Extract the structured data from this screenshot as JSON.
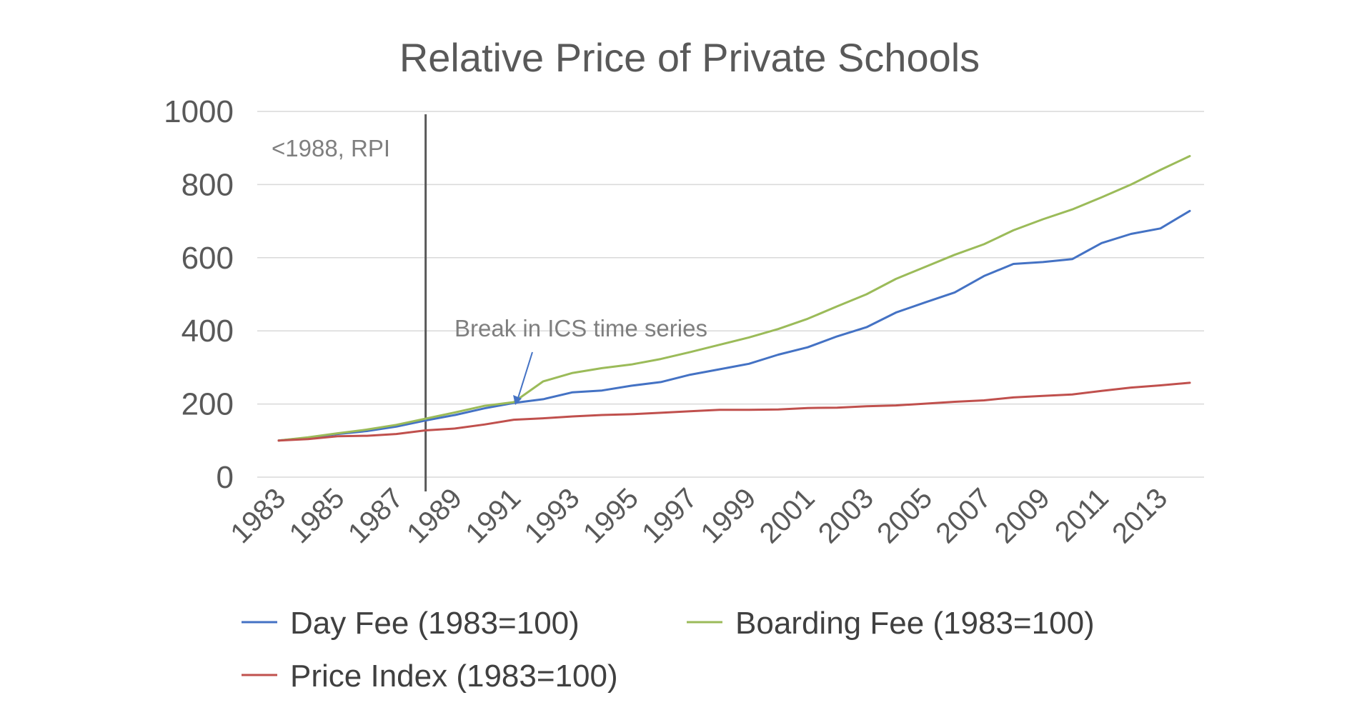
{
  "chart_data": {
    "type": "line",
    "title": "Relative Price of Private Schools",
    "xlabel": "",
    "ylabel": "",
    "ylim": [
      0,
      1000
    ],
    "yticks": [
      "0",
      "200",
      "400",
      "600",
      "800",
      "1000"
    ],
    "grid": true,
    "legend_position": "bottom",
    "x": [
      1983,
      1984,
      1985,
      1986,
      1987,
      1988,
      1989,
      1990,
      1991,
      1992,
      1993,
      1994,
      1995,
      1996,
      1997,
      1998,
      1999,
      2000,
      2001,
      2002,
      2003,
      2004,
      2005,
      2006,
      2007,
      2008,
      2009,
      2010,
      2011,
      2012,
      2013,
      2014
    ],
    "xtick_labels": [
      "1983",
      "1985",
      "1987",
      "1989",
      "1991",
      "1993",
      "1995",
      "1997",
      "1999",
      "2001",
      "2003",
      "2005",
      "2007",
      "2009",
      "2011",
      "2013"
    ],
    "series": [
      {
        "name": "Day Fee (1983=100)",
        "color": "#4472c4",
        "values": [
          100,
          108,
          118,
          126,
          138,
          155,
          170,
          188,
          203,
          213,
          232,
          237,
          250,
          260,
          280,
          295,
          310,
          335,
          355,
          385,
          410,
          450,
          478,
          505,
          550,
          583,
          588,
          596,
          640,
          665,
          680,
          728
        ]
      },
      {
        "name": "Boarding Fee (1983=100)",
        "color": "#9bbb59",
        "values": [
          100,
          109,
          120,
          130,
          143,
          160,
          177,
          195,
          205,
          262,
          285,
          298,
          308,
          323,
          342,
          362,
          382,
          405,
          433,
          467,
          500,
          542,
          575,
          608,
          637,
          675,
          705,
          732,
          765,
          800,
          840,
          878
        ]
      },
      {
        "name": "Price Index (1983=100)",
        "color": "#c0504d",
        "values": [
          100,
          104,
          112,
          113,
          118,
          128,
          133,
          144,
          157,
          161,
          166,
          170,
          172,
          176,
          180,
          184,
          184,
          185,
          189,
          190,
          194,
          196,
          201,
          206,
          210,
          218,
          222,
          226,
          236,
          245,
          251,
          258
        ]
      }
    ],
    "annotations": [
      {
        "text": "<1988, RPI",
        "x": 1988
      },
      {
        "text": "Break in ICS time series",
        "x": 1991,
        "y": 205
      }
    ]
  }
}
